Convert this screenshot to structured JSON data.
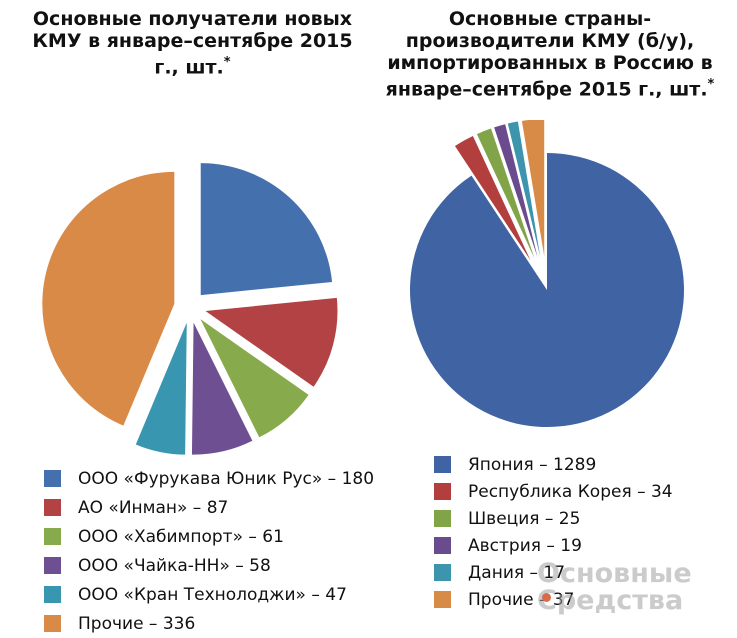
{
  "chart_data": [
    {
      "type": "pie",
      "title": "Основные получатели новых КМУ в январе–сентябре 2015 г., шт.",
      "title_mark": "*",
      "legend_placement": "bottom",
      "exploded": true,
      "series": [
        {
          "name": "ООО «Фурукава Юник Рус»",
          "value": 180,
          "color": "#4470ad"
        },
        {
          "name": "АО «Инман»",
          "value": 87,
          "color": "#b24244"
        },
        {
          "name": "ООО «Хабимпорт»",
          "value": 61,
          "color": "#87ab4c"
        },
        {
          "name": "ООО «Чайка-НН»",
          "value": 58,
          "color": "#6e4f92"
        },
        {
          "name": "ООО «Кран Технолоджи»",
          "value": 47,
          "color": "#3996b0"
        },
        {
          "name": "Прочие",
          "value": 336,
          "color": "#d98a47"
        }
      ],
      "legend_labels": [
        "ООО «Фурукава Юник Рус» – 180",
        "АО «Инман» – 87",
        "ООО «Хабимпорт» – 61",
        "ООО «Чайка-НН» – 58",
        "ООО «Кран Технолоджи» – 47",
        "Прочие – 336"
      ]
    },
    {
      "type": "pie",
      "title": "Основные страны-производители КМУ (б/у), импортированных в Россию в январе–сентябре 2015 г., шт.",
      "title_mark": "*",
      "legend_placement": "bottom",
      "exploded": true,
      "series": [
        {
          "name": "Япония",
          "value": 1289,
          "color": "#3f63a3"
        },
        {
          "name": "Республика Корея",
          "value": 34,
          "color": "#b23e3e"
        },
        {
          "name": "Швеция",
          "value": 25,
          "color": "#82a448"
        },
        {
          "name": "Австрия",
          "value": 19,
          "color": "#6a4b8e"
        },
        {
          "name": "Дания",
          "value": 17,
          "color": "#3c94ad"
        },
        {
          "name": "Прочие",
          "value": 37,
          "color": "#d88b47"
        }
      ],
      "legend_labels": [
        "Япония – 1289",
        "Республика Корея – 34",
        "Швеция – 25",
        "Австрия – 19",
        "Дания – 17",
        "Прочие – 37"
      ]
    }
  ],
  "watermark": {
    "line1": "Основные",
    "line2": "Средства"
  }
}
